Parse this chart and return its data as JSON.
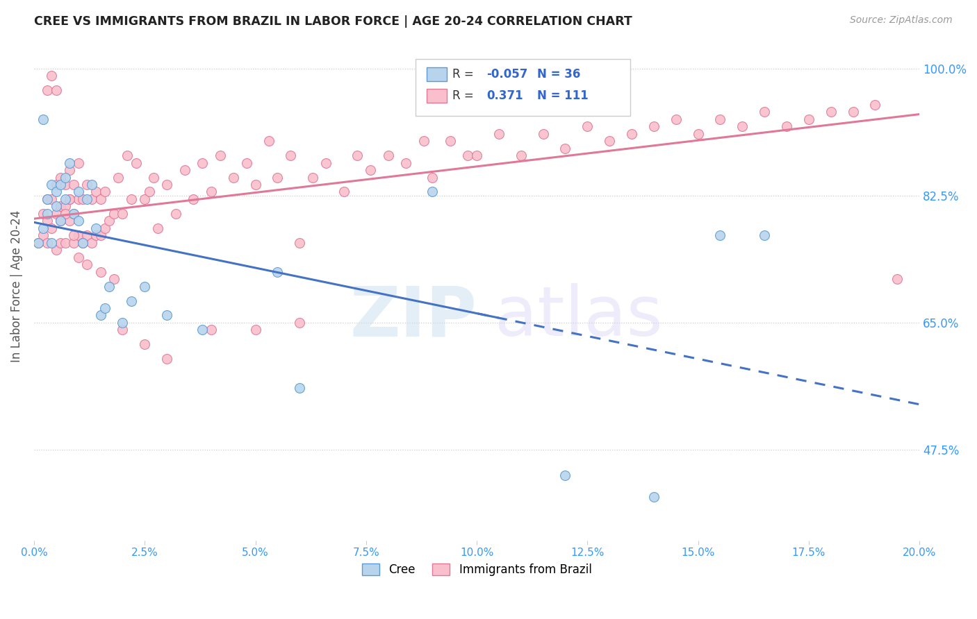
{
  "title": "CREE VS IMMIGRANTS FROM BRAZIL IN LABOR FORCE | AGE 20-24 CORRELATION CHART",
  "source": "Source: ZipAtlas.com",
  "ylabel": "In Labor Force | Age 20-24",
  "ytick_labels": [
    "100.0%",
    "82.5%",
    "65.0%",
    "47.5%"
  ],
  "ytick_values": [
    1.0,
    0.825,
    0.65,
    0.475
  ],
  "xmin": 0.0,
  "xmax": 0.2,
  "ymin": 0.35,
  "ymax": 1.05,
  "legend_blue_r": "-0.057",
  "legend_blue_n": "36",
  "legend_pink_r": "0.371",
  "legend_pink_n": "111",
  "cree_fill": "#b8d4ed",
  "brazil_fill": "#f9bfcc",
  "cree_edge": "#5b9bd5",
  "brazil_edge": "#e07898",
  "cree_line": "#4472c4",
  "brazil_line": "#e07898",
  "cree_x": [
    0.001,
    0.002,
    0.002,
    0.003,
    0.003,
    0.004,
    0.004,
    0.005,
    0.005,
    0.006,
    0.006,
    0.007,
    0.007,
    0.008,
    0.009,
    0.01,
    0.01,
    0.011,
    0.012,
    0.013,
    0.014,
    0.015,
    0.016,
    0.017,
    0.02,
    0.022,
    0.025,
    0.03,
    0.038,
    0.055,
    0.06,
    0.09,
    0.12,
    0.14,
    0.155,
    0.165
  ],
  "cree_y": [
    0.76,
    0.93,
    0.78,
    0.8,
    0.82,
    0.84,
    0.76,
    0.83,
    0.81,
    0.84,
    0.79,
    0.85,
    0.82,
    0.87,
    0.8,
    0.83,
    0.79,
    0.76,
    0.82,
    0.84,
    0.78,
    0.66,
    0.67,
    0.7,
    0.65,
    0.68,
    0.7,
    0.66,
    0.64,
    0.72,
    0.56,
    0.83,
    0.44,
    0.41,
    0.77,
    0.77
  ],
  "brazil_x": [
    0.001,
    0.002,
    0.002,
    0.003,
    0.003,
    0.003,
    0.004,
    0.004,
    0.005,
    0.005,
    0.005,
    0.006,
    0.006,
    0.006,
    0.007,
    0.007,
    0.007,
    0.008,
    0.008,
    0.008,
    0.009,
    0.009,
    0.009,
    0.01,
    0.01,
    0.01,
    0.011,
    0.011,
    0.012,
    0.012,
    0.013,
    0.013,
    0.014,
    0.014,
    0.015,
    0.015,
    0.016,
    0.016,
    0.017,
    0.018,
    0.019,
    0.02,
    0.021,
    0.022,
    0.023,
    0.025,
    0.026,
    0.027,
    0.028,
    0.03,
    0.032,
    0.034,
    0.036,
    0.038,
    0.04,
    0.042,
    0.045,
    0.048,
    0.05,
    0.053,
    0.055,
    0.058,
    0.06,
    0.063,
    0.066,
    0.07,
    0.073,
    0.076,
    0.08,
    0.084,
    0.088,
    0.09,
    0.094,
    0.098,
    0.1,
    0.105,
    0.11,
    0.115,
    0.12,
    0.125,
    0.13,
    0.135,
    0.14,
    0.145,
    0.15,
    0.155,
    0.16,
    0.165,
    0.17,
    0.175,
    0.18,
    0.185,
    0.19,
    0.195,
    0.003,
    0.004,
    0.005,
    0.006,
    0.007,
    0.008,
    0.009,
    0.01,
    0.012,
    0.015,
    0.018,
    0.02,
    0.025,
    0.03,
    0.04,
    0.05,
    0.06
  ],
  "brazil_y": [
    0.76,
    0.77,
    0.8,
    0.76,
    0.79,
    0.82,
    0.78,
    0.82,
    0.75,
    0.8,
    0.84,
    0.76,
    0.81,
    0.85,
    0.76,
    0.81,
    0.84,
    0.79,
    0.82,
    0.86,
    0.76,
    0.8,
    0.84,
    0.77,
    0.82,
    0.87,
    0.76,
    0.82,
    0.77,
    0.84,
    0.76,
    0.82,
    0.77,
    0.83,
    0.77,
    0.82,
    0.78,
    0.83,
    0.79,
    0.8,
    0.85,
    0.8,
    0.88,
    0.82,
    0.87,
    0.82,
    0.83,
    0.85,
    0.78,
    0.84,
    0.8,
    0.86,
    0.82,
    0.87,
    0.83,
    0.88,
    0.85,
    0.87,
    0.84,
    0.9,
    0.85,
    0.88,
    0.76,
    0.85,
    0.87,
    0.83,
    0.88,
    0.86,
    0.88,
    0.87,
    0.9,
    0.85,
    0.9,
    0.88,
    0.88,
    0.91,
    0.88,
    0.91,
    0.89,
    0.92,
    0.9,
    0.91,
    0.92,
    0.93,
    0.91,
    0.93,
    0.92,
    0.94,
    0.92,
    0.93,
    0.94,
    0.94,
    0.95,
    0.71,
    0.97,
    0.99,
    0.97,
    0.79,
    0.8,
    0.82,
    0.77,
    0.74,
    0.73,
    0.72,
    0.71,
    0.64,
    0.62,
    0.6,
    0.64,
    0.64,
    0.65
  ]
}
